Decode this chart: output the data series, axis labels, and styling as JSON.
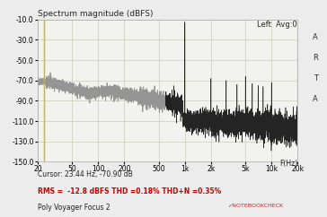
{
  "title": "Spectrum magnitude (dBFS)",
  "top_right_label": "Left  Avg:0",
  "xlabel": "F(Hz)",
  "cursor_label": "Cursor: 23.44 Hz, -70.90 dB",
  "rms_label": "RMS =  -12.8 dBFS THD =0.18% THD+N =0.35%",
  "device_label": "Poly Voyager Focus 2",
  "notebookcheck_label": "✓NOTEBOOKCHECK",
  "ylim": [
    -150,
    -10
  ],
  "yticks": [
    -150,
    -130,
    -110,
    -90,
    -70,
    -50,
    -30,
    -10
  ],
  "ytick_labels": [
    "-150.0",
    "-130.0",
    "-110.0",
    "-90.0",
    "-70.0",
    "-50.0",
    "-30.0",
    "-10.0"
  ],
  "xticks_log": [
    20,
    50,
    100,
    200,
    500,
    1000,
    2000,
    5000,
    10000,
    20000
  ],
  "xtick_labels": [
    "20",
    "50",
    "100",
    "200",
    "500",
    "1k",
    "2k",
    "5k",
    "10k",
    "20k"
  ],
  "xlim": [
    20,
    20000
  ],
  "bg_color": "#ececec",
  "plot_bg_color": "#f2f2ee",
  "grid_color": "#ccccbb",
  "line_color_gray": "#909090",
  "line_color_dark": "#1a1a1a",
  "cursor_line_color": "#d4b800",
  "rms_color": "#cc0000",
  "device_color": "#202020",
  "notebookcheck_color": "#cc2222",
  "arta_color": "#303030",
  "fundamental_freq": 1000,
  "fundamental_level": -12.5,
  "noise_start": -70,
  "noise_mid": -88,
  "noise_high": -110,
  "noise_vhigh": -118
}
